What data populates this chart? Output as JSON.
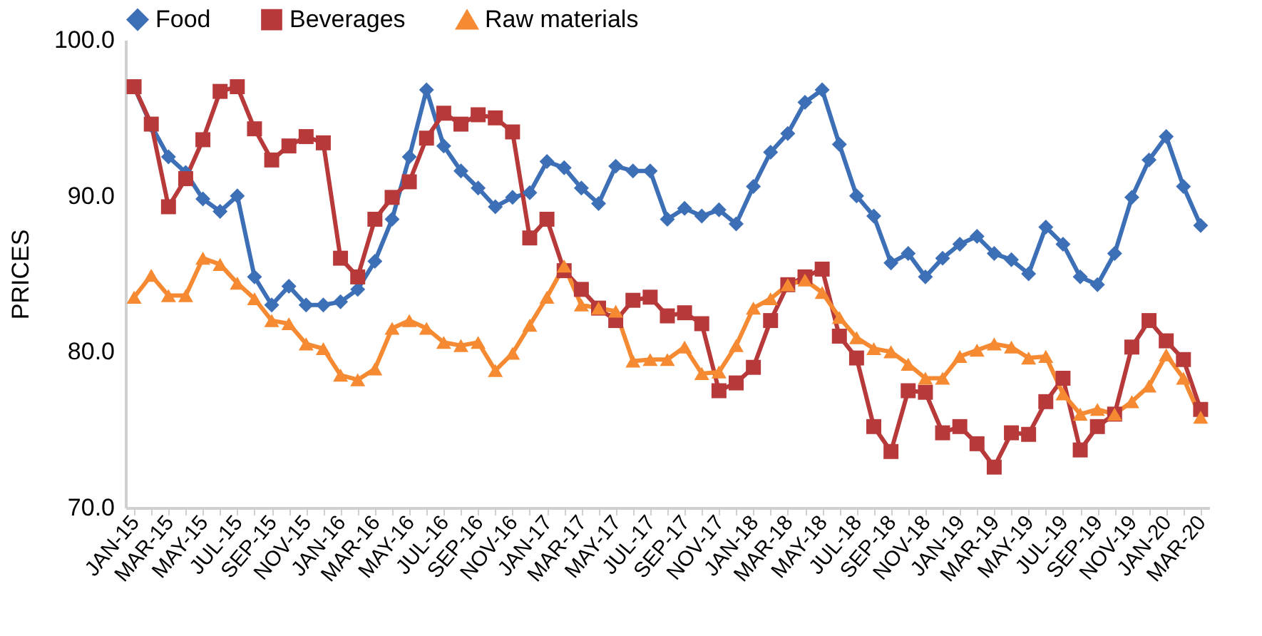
{
  "chart_data": {
    "type": "line",
    "ylabel": "PRICES",
    "categories": [
      "JAN-15",
      null,
      "MAR-15",
      null,
      "MAY-15",
      null,
      "JUL-15",
      null,
      "SEP-15",
      null,
      "NOV-15",
      null,
      "JAN-16",
      null,
      "MAR-16",
      null,
      "MAY-16",
      null,
      "JUL-16",
      null,
      "SEP-16",
      null,
      "NOV-16",
      null,
      "JAN-17",
      null,
      "MAR-17",
      null,
      "MAY-17",
      null,
      "JUL-17",
      null,
      "SEP-17",
      null,
      "NOV-17",
      null,
      "JAN-18",
      null,
      "MAR-18",
      null,
      "MAY-18",
      null,
      "JUL-18",
      null,
      "SEP-18",
      null,
      "NOV-18",
      null,
      "JAN-19",
      null,
      "MAR-19",
      null,
      "MAY-19",
      null,
      "JUL-19",
      null,
      "SEP-19",
      null,
      "NOV-19",
      null,
      "JAN-20",
      null,
      "MAR-20"
    ],
    "series": [
      {
        "name": "Food",
        "color": "#3d6fb6",
        "marker": "diamond",
        "values": [
          97.0,
          94.5,
          92.5,
          91.5,
          89.8,
          89.0,
          90.0,
          84.8,
          83.0,
          84.2,
          83.0,
          83.0,
          83.2,
          84.0,
          85.8,
          88.5,
          92.5,
          96.8,
          93.2,
          91.6,
          90.5,
          89.3,
          89.9,
          90.2,
          92.2,
          91.8,
          90.5,
          89.5,
          91.9,
          91.6,
          91.6,
          88.5,
          89.2,
          88.7,
          89.1,
          88.2,
          90.6,
          92.8,
          94.0,
          96.0,
          96.8,
          93.3,
          90.0,
          88.7,
          85.7,
          86.3,
          84.8,
          86.0,
          86.9,
          87.4,
          86.3,
          85.9,
          85.0,
          88.0,
          86.9,
          84.8,
          84.3,
          86.3,
          89.9,
          92.3,
          93.8,
          90.6,
          88.1
        ]
      },
      {
        "name": "Beverages",
        "color": "#b7393a",
        "marker": "square",
        "values": [
          97.0,
          94.6,
          89.3,
          91.1,
          93.6,
          96.7,
          97.0,
          94.3,
          92.3,
          93.2,
          93.8,
          93.4,
          86.0,
          84.8,
          88.5,
          89.9,
          90.9,
          93.7,
          95.3,
          94.6,
          95.2,
          95.0,
          94.1,
          87.3,
          88.5,
          85.2,
          84.0,
          82.8,
          82.0,
          83.3,
          83.5,
          82.3,
          82.5,
          81.8,
          77.5,
          78.0,
          79.0,
          82.0,
          84.3,
          84.8,
          85.3,
          81.0,
          79.6,
          75.2,
          73.6,
          77.5,
          77.4,
          74.8,
          75.2,
          74.1,
          72.6,
          74.8,
          74.7,
          76.8,
          78.3,
          73.7,
          75.2,
          76.0,
          80.3,
          82.0,
          80.7,
          79.5,
          76.3
        ]
      },
      {
        "name": "Raw materials",
        "color": "#f58a32",
        "marker": "triangle",
        "values": [
          83.5,
          84.9,
          83.6,
          83.6,
          86.0,
          85.6,
          84.4,
          83.4,
          82.0,
          81.8,
          80.5,
          80.2,
          78.5,
          78.2,
          78.9,
          81.5,
          82.0,
          81.5,
          80.6,
          80.4,
          80.6,
          78.8,
          79.9,
          81.7,
          83.5,
          85.5,
          83.0,
          82.8,
          82.6,
          79.4,
          79.5,
          79.5,
          80.3,
          78.6,
          78.7,
          80.4,
          82.8,
          83.4,
          84.3,
          84.6,
          83.8,
          82.2,
          80.9,
          80.2,
          80.0,
          79.2,
          78.3,
          78.3,
          79.7,
          80.1,
          80.5,
          80.3,
          79.6,
          79.7,
          77.3,
          76.0,
          76.3,
          76.0,
          76.8,
          77.8,
          79.8,
          78.3,
          75.8
        ]
      }
    ],
    "ylim": [
      70,
      100
    ],
    "yticks": [
      {
        "value": 70,
        "label": "70.0"
      },
      {
        "value": 80,
        "label": "80.0"
      },
      {
        "value": 90,
        "label": "90.0"
      },
      {
        "value": 100,
        "label": "100.0"
      }
    ],
    "grid": false,
    "legend": "top",
    "line_style": "solid"
  }
}
